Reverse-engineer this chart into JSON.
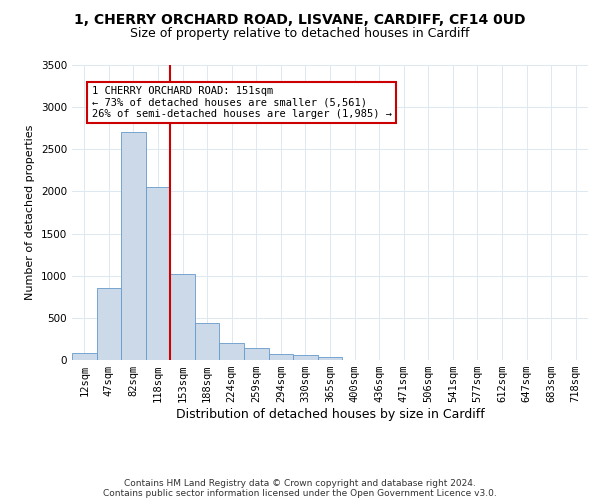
{
  "title_line1": "1, CHERRY ORCHARD ROAD, LISVANE, CARDIFF, CF14 0UD",
  "title_line2": "Size of property relative to detached houses in Cardiff",
  "xlabel": "Distribution of detached houses by size in Cardiff",
  "ylabel": "Number of detached properties",
  "footer_line1": "Contains HM Land Registry data © Crown copyright and database right 2024.",
  "footer_line2": "Contains public sector information licensed under the Open Government Licence v3.0.",
  "annotation_line1": "1 CHERRY ORCHARD ROAD: 151sqm",
  "annotation_line2": "← 73% of detached houses are smaller (5,561)",
  "annotation_line3": "26% of semi-detached houses are larger (1,985) →",
  "bar_color": "#ccd9e8",
  "bar_edge_color": "#6699cc",
  "vline_color": "#cc0000",
  "annotation_box_color": "#cc0000",
  "grid_color": "#dde8f0",
  "categories": [
    "12sqm",
    "47sqm",
    "82sqm",
    "118sqm",
    "153sqm",
    "188sqm",
    "224sqm",
    "259sqm",
    "294sqm",
    "330sqm",
    "365sqm",
    "400sqm",
    "436sqm",
    "471sqm",
    "506sqm",
    "541sqm",
    "577sqm",
    "612sqm",
    "647sqm",
    "683sqm",
    "718sqm"
  ],
  "bar_heights": [
    80,
    850,
    2700,
    2050,
    1020,
    440,
    205,
    140,
    75,
    55,
    35,
    5,
    2,
    1,
    0,
    0,
    0,
    0,
    0,
    0,
    0
  ],
  "ylim": [
    0,
    3500
  ],
  "yticks": [
    0,
    500,
    1000,
    1500,
    2000,
    2500,
    3000,
    3500
  ],
  "vline_bar_index": 3,
  "bar_width": 1.0,
  "title1_fontsize": 10,
  "title2_fontsize": 9,
  "xlabel_fontsize": 9,
  "ylabel_fontsize": 8,
  "tick_fontsize": 7.5,
  "annotation_fontsize": 7.5,
  "footer_fontsize": 6.5
}
